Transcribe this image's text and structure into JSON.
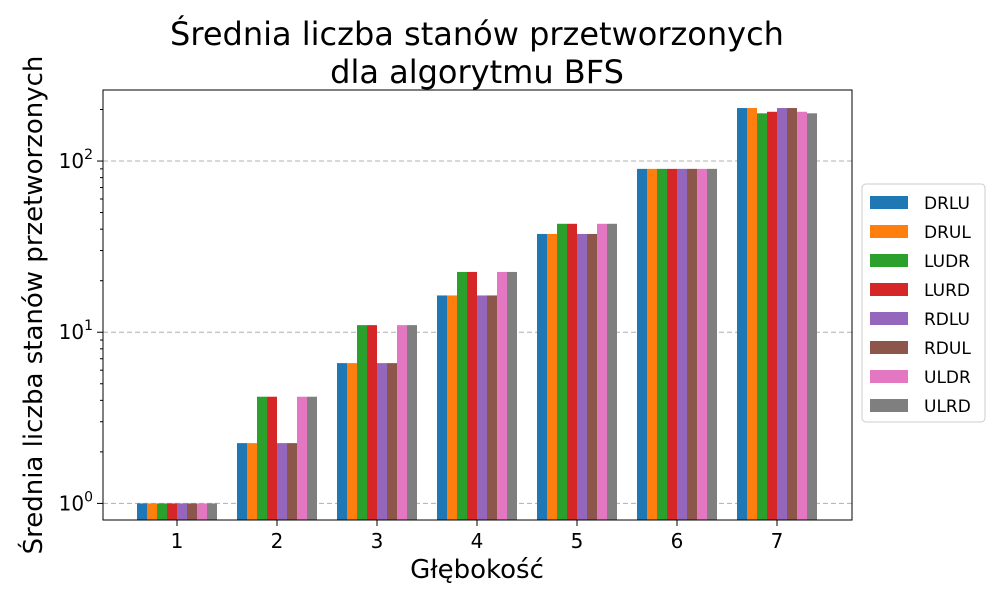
{
  "chart_data": {
    "type": "bar",
    "title": [
      "Średnia liczba stanów przetworzonych",
      "dla algorytmu BFS"
    ],
    "xlabel": "Głębokość",
    "ylabel": "Średnia liczba stanów przetworzonych",
    "y_scale": "log",
    "ylim": [
      0.8,
      260
    ],
    "y_ticks": [
      {
        "value": 1,
        "base": "10",
        "exp": "0"
      },
      {
        "value": 10,
        "base": "10",
        "exp": "1"
      },
      {
        "value": 100,
        "base": "10",
        "exp": "2"
      }
    ],
    "grid": "horizontal dashed",
    "legend_position": "right",
    "categories": [
      "1",
      "2",
      "3",
      "4",
      "5",
      "6",
      "7"
    ],
    "series": [
      {
        "name": "DRLU",
        "color": "#1f77b4",
        "values": [
          1,
          2.25,
          6.6,
          16.4,
          37.5,
          90,
          204
        ]
      },
      {
        "name": "DRUL",
        "color": "#ff7f0e",
        "values": [
          1,
          2.25,
          6.6,
          16.4,
          37.5,
          90,
          204
        ]
      },
      {
        "name": "LUDR",
        "color": "#2ca02c",
        "values": [
          1,
          4.2,
          11,
          22.5,
          43,
          90,
          190
        ]
      },
      {
        "name": "LURD",
        "color": "#d62728",
        "values": [
          1,
          4.2,
          11,
          22.5,
          43,
          90,
          194
        ]
      },
      {
        "name": "RDLU",
        "color": "#9467bd",
        "values": [
          1,
          2.25,
          6.6,
          16.4,
          37.5,
          90,
          204
        ]
      },
      {
        "name": "RDUL",
        "color": "#8c564b",
        "values": [
          1,
          2.25,
          6.6,
          16.4,
          37.5,
          90,
          204
        ]
      },
      {
        "name": "ULDR",
        "color": "#e377c2",
        "values": [
          1,
          4.2,
          11,
          22.5,
          43,
          90,
          194
        ]
      },
      {
        "name": "ULRD",
        "color": "#7f7f7f",
        "values": [
          1,
          4.2,
          11,
          22.5,
          43,
          90,
          190
        ]
      }
    ]
  }
}
